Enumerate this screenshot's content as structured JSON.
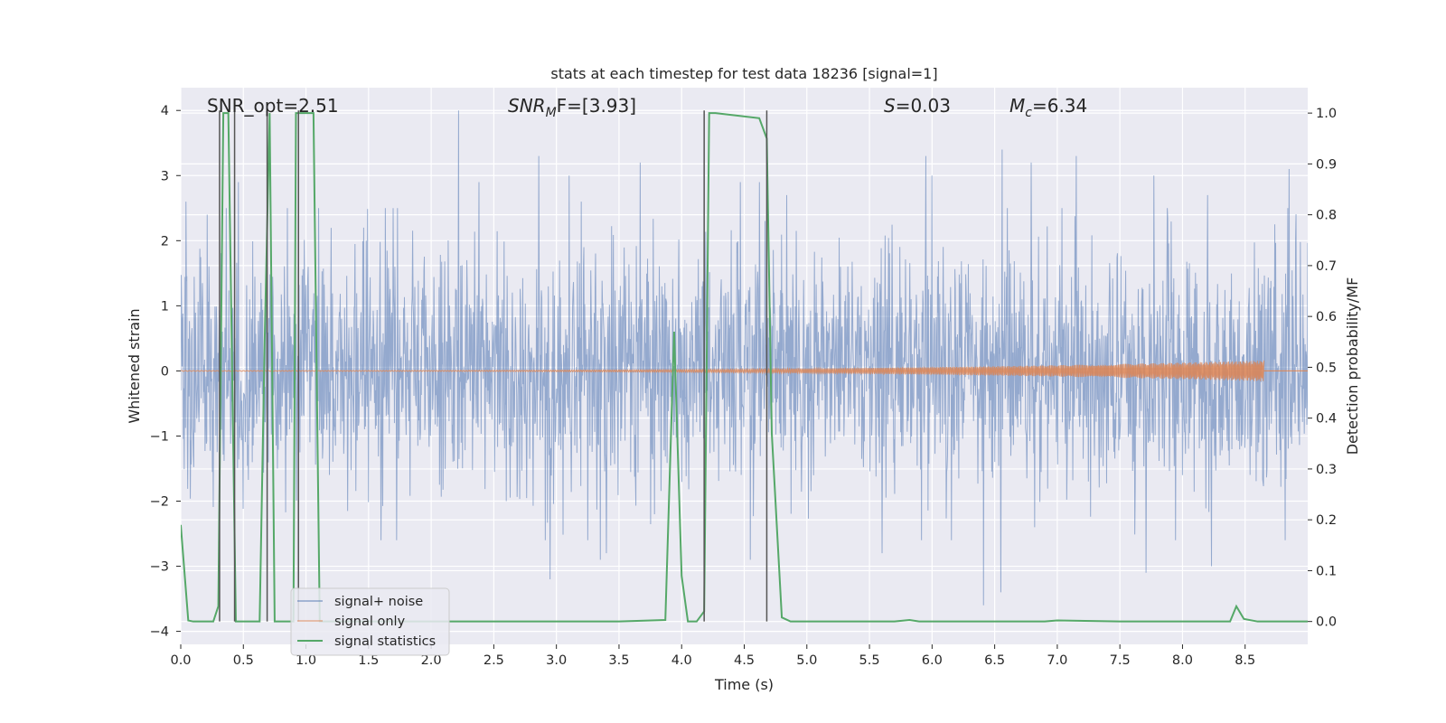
{
  "chart_data": {
    "type": "line",
    "title": "stats at each timestep for test data 18236 [signal=1]",
    "xlabel": "Time (s)",
    "ylabel_left": "Whitened strain",
    "ylabel_right": "Detection probability/MF",
    "xlim": [
      0.0,
      9.0
    ],
    "ylim_left": [
      -4.2,
      4.35
    ],
    "ylim_right": [
      -0.045,
      1.05
    ],
    "x_ticks": [
      "0.0",
      "0.5",
      "1.0",
      "1.5",
      "2.0",
      "2.5",
      "3.0",
      "3.5",
      "4.0",
      "4.5",
      "5.0",
      "5.5",
      "6.0",
      "6.5",
      "7.0",
      "7.5",
      "8.0",
      "8.5"
    ],
    "y_ticks_left": [
      "4",
      "3",
      "2",
      "1",
      "0",
      "−1",
      "−2",
      "−3",
      "−4"
    ],
    "y_ticks_right": [
      "1.0",
      "0.9",
      "0.8",
      "0.7",
      "0.6",
      "0.5",
      "0.4",
      "0.3",
      "0.2",
      "0.1",
      "0.0"
    ],
    "grid": true,
    "legend_position": "lower-left",
    "annotations": [
      {
        "id": "snr-opt",
        "text": "SNR_opt=2.51"
      },
      {
        "id": "snr-mf",
        "base": "SNR",
        "sub": "M",
        "suffix": "F=[3.93]"
      },
      {
        "id": "s",
        "base": "S",
        "suffix": "=0.03"
      },
      {
        "id": "mc",
        "base": "M",
        "sub": "c",
        "suffix": "=6.34"
      }
    ],
    "series": [
      {
        "name": "signal+ noise",
        "color": "#4c72b0",
        "axis": "left",
        "kind": "noise",
        "x_range": [
          0.0,
          9.0
        ],
        "band_std": 0.9,
        "peaks": [
          [
            0.04,
            2.6
          ],
          [
            0.21,
            2.4
          ],
          [
            0.46,
            2.9
          ],
          [
            0.85,
            2.5
          ],
          [
            1.1,
            2.5
          ],
          [
            1.46,
            2.2
          ],
          [
            1.73,
            2.5
          ],
          [
            2.22,
            4.0
          ],
          [
            2.38,
            2.9
          ],
          [
            2.86,
            3.3
          ],
          [
            3.1,
            3.0
          ],
          [
            3.2,
            2.6
          ],
          [
            3.67,
            3.2
          ],
          [
            4.47,
            2.9
          ],
          [
            4.62,
            2.9
          ],
          [
            4.84,
            2.7
          ],
          [
            5.95,
            3.3
          ],
          [
            6.0,
            3.0
          ],
          [
            6.56,
            3.4
          ],
          [
            6.79,
            3.2
          ],
          [
            7.15,
            3.3
          ],
          [
            7.77,
            3.0
          ],
          [
            8.2,
            2.7
          ],
          [
            8.85,
            3.1
          ],
          [
            2.95,
            -3.2
          ],
          [
            3.35,
            -2.9
          ],
          [
            6.41,
            -3.6
          ],
          [
            6.55,
            -3.4
          ],
          [
            7.71,
            -3.1
          ],
          [
            8.23,
            -3.0
          ],
          [
            4.55,
            -2.9
          ],
          [
            3.4,
            -2.8
          ],
          [
            1.6,
            -2.6
          ],
          [
            5.6,
            -2.8
          ]
        ]
      },
      {
        "name": "signal only",
        "color": "#dd8452",
        "axis": "left",
        "kind": "chirp",
        "x_range": [
          0.0,
          8.65
        ],
        "start_amp": 0.006,
        "end_amp": 0.16
      },
      {
        "name": "signal statistics",
        "color": "#55a868",
        "axis": "right",
        "kind": "line",
        "x": [
          0.0,
          0.06,
          0.1,
          0.26,
          0.3,
          0.34,
          0.38,
          0.44,
          0.52,
          0.55,
          0.6,
          0.63,
          0.67,
          0.71,
          0.75,
          0.8,
          0.9,
          0.92,
          0.96,
          1.06,
          1.11,
          1.15,
          1.5,
          2.0,
          2.5,
          3.0,
          3.5,
          3.87,
          3.94,
          4.0,
          4.05,
          4.12,
          4.18,
          4.22,
          4.27,
          4.62,
          4.68,
          4.72,
          4.8,
          4.87,
          5.0,
          5.7,
          5.82,
          5.9,
          6.3,
          6.9,
          7.0,
          7.5,
          8.0,
          8.38,
          8.43,
          8.49,
          8.6,
          9.0
        ],
        "y": [
          0.19,
          0.002,
          0.0,
          0.0,
          0.03,
          1.0,
          1.0,
          0.0,
          0.0,
          0.0,
          0.0,
          0.0,
          0.55,
          1.0,
          0.0,
          0.0,
          0.0,
          1.0,
          1.0,
          1.0,
          0.0,
          0.0,
          0.0,
          0.0,
          0.0,
          0.0,
          0.0,
          0.003,
          0.57,
          0.09,
          0.0,
          0.0,
          0.02,
          1.0,
          1.0,
          0.99,
          0.95,
          0.37,
          0.008,
          0.0,
          0.0,
          0.0,
          0.003,
          0.0,
          0.0,
          0.0,
          0.002,
          0.0,
          0.0,
          0.0,
          0.03,
          0.005,
          0.0,
          0.0
        ]
      }
    ],
    "vertical_lines": [
      0.31,
      0.43,
      0.69,
      0.94,
      4.18,
      4.68
    ]
  }
}
